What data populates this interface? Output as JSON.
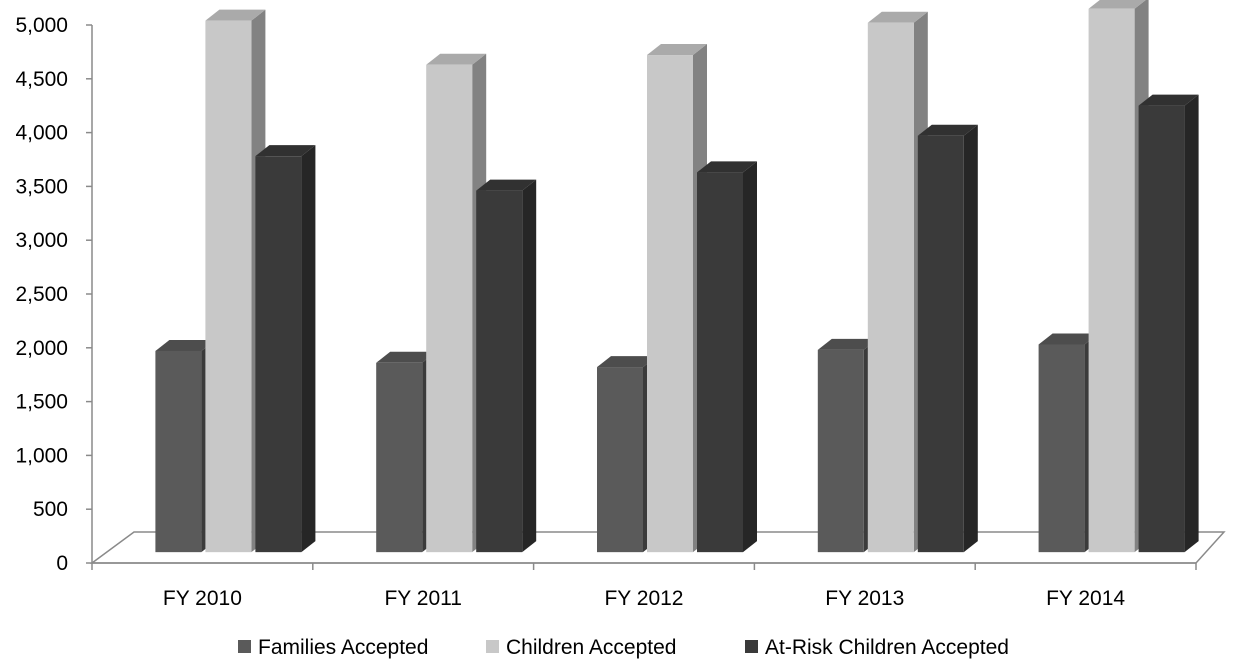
{
  "chart_data": {
    "type": "bar",
    "title": "",
    "xlabel": "",
    "ylabel": "",
    "ylim": [
      0,
      5000
    ],
    "yticks": [
      "0",
      "500",
      "1,000",
      "1,500",
      "2,000",
      "2,500",
      "3,000",
      "3,500",
      "4,000",
      "4,500",
      "5,000"
    ],
    "categories": [
      "FY 2010",
      "FY 2011",
      "FY 2012",
      "FY 2013",
      "FY 2014"
    ],
    "series": [
      {
        "name": "Families Accepted",
        "color": "#5a5a5a",
        "values": [
          1870,
          1760,
          1720,
          1880,
          1930
        ]
      },
      {
        "name": "Children Accepted",
        "color": "#c8c8c8",
        "values": [
          4940,
          4530,
          4620,
          4920,
          5050
        ]
      },
      {
        "name": "At-Risk Children Accepted",
        "color": "#3a3a3a",
        "values": [
          3680,
          3360,
          3530,
          3870,
          4150
        ]
      }
    ],
    "legend_position": "bottom",
    "grid": false,
    "style": "3d-column"
  }
}
